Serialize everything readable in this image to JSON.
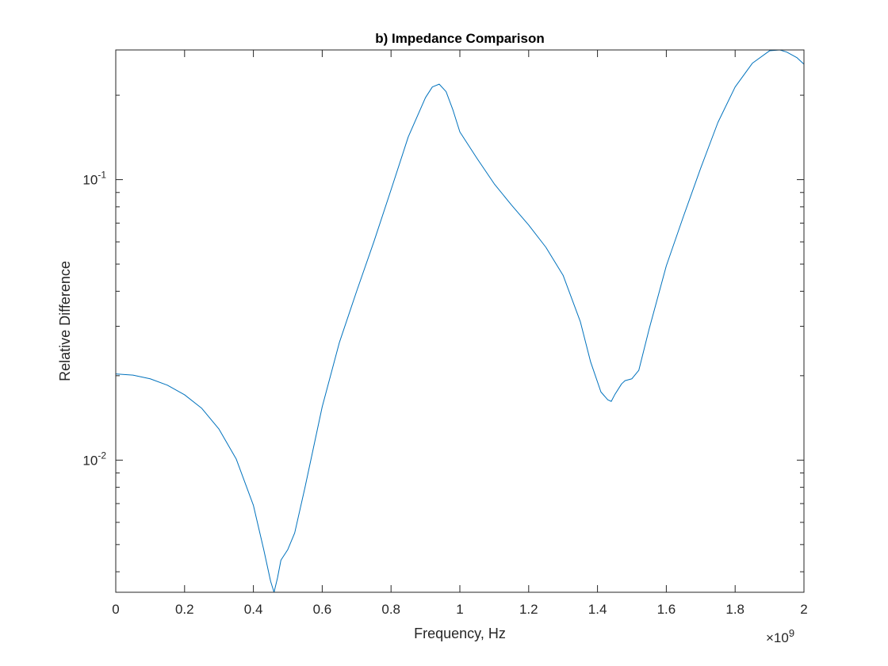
{
  "chart_data": {
    "type": "line",
    "title": "b) Impedance Comparison",
    "xlabel": "Frequency, Hz",
    "ylabel": "Relative Difference",
    "x_exponent_label": "×10",
    "x_exponent_value": "9",
    "xlim": [
      0,
      2
    ],
    "x_multiplier": 1000000000,
    "ylim": [
      0.00338,
      0.29
    ],
    "yscale": "log",
    "grid": false,
    "legend": "none",
    "x_ticks": [
      {
        "value": 0,
        "label": "0"
      },
      {
        "value": 0.2,
        "label": "0.2"
      },
      {
        "value": 0.4,
        "label": "0.4"
      },
      {
        "value": 0.6,
        "label": "0.6"
      },
      {
        "value": 0.8,
        "label": "0.8"
      },
      {
        "value": 1.0,
        "label": "1"
      },
      {
        "value": 1.2,
        "label": "1.2"
      },
      {
        "value": 1.4,
        "label": "1.4"
      },
      {
        "value": 1.6,
        "label": "1.6"
      },
      {
        "value": 1.8,
        "label": "1.8"
      },
      {
        "value": 2.0,
        "label": "2"
      }
    ],
    "y_ticks": [
      {
        "value": 0.01,
        "base": "10",
        "exp": "-2"
      },
      {
        "value": 0.1,
        "base": "10",
        "exp": "-1"
      }
    ],
    "series": [
      {
        "color": "#0072BD",
        "x": [
          0,
          0.05,
          0.1,
          0.15,
          0.2,
          0.25,
          0.3,
          0.35,
          0.4,
          0.43,
          0.45,
          0.46,
          0.47,
          0.48,
          0.5,
          0.52,
          0.55,
          0.6,
          0.65,
          0.7,
          0.75,
          0.8,
          0.85,
          0.9,
          0.92,
          0.94,
          0.96,
          0.98,
          1.0,
          1.05,
          1.1,
          1.15,
          1.2,
          1.25,
          1.3,
          1.35,
          1.38,
          1.41,
          1.43,
          1.44,
          1.45,
          1.47,
          1.48,
          1.5,
          1.52,
          1.55,
          1.6,
          1.65,
          1.7,
          1.75,
          1.8,
          1.85,
          1.9,
          1.93,
          1.95,
          1.98,
          2.0
        ],
        "y": [
          0.0203,
          0.0201,
          0.0195,
          0.0185,
          0.0171,
          0.0153,
          0.0129,
          0.0101,
          0.0069,
          0.0048,
          0.0037,
          0.00338,
          0.0038,
          0.0044,
          0.0048,
          0.0055,
          0.008,
          0.0155,
          0.0263,
          0.04,
          0.06,
          0.092,
          0.142,
          0.196,
          0.214,
          0.219,
          0.206,
          0.177,
          0.148,
          0.119,
          0.0966,
          0.0812,
          0.0689,
          0.0574,
          0.0456,
          0.0312,
          0.0224,
          0.0175,
          0.0164,
          0.0162,
          0.0171,
          0.0187,
          0.0192,
          0.0195,
          0.0209,
          0.0293,
          0.0493,
          0.0741,
          0.11,
          0.16,
          0.214,
          0.26,
          0.288,
          0.29,
          0.285,
          0.272,
          0.258
        ]
      }
    ]
  }
}
